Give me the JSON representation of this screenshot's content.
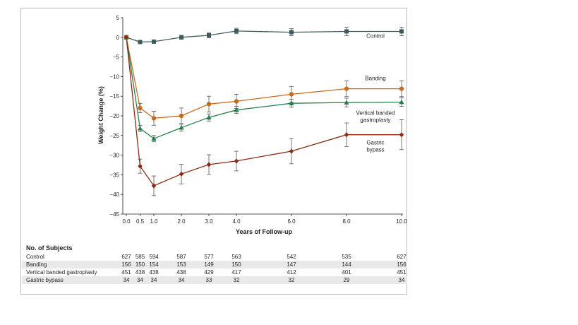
{
  "chart_data": {
    "type": "line",
    "xlabel": "Years of Follow-up",
    "ylabel": "Weight Change (%)",
    "x_ticks": [
      "0.0",
      "0.5",
      "1.0",
      "2.0",
      "3.0",
      "4.0",
      "6.0",
      "8.0",
      "10.0"
    ],
    "y_ticks": [
      5,
      0,
      -5,
      -10,
      -15,
      -20,
      -25,
      -30,
      -35,
      -40,
      -45
    ],
    "ylim": [
      -45,
      5
    ],
    "grid": false,
    "legend": "inline labels at right end of each line",
    "series": [
      {
        "name": "Control",
        "label_lines": [
          "Control"
        ],
        "color": "#3f5a5c",
        "marker": "square",
        "x": [
          0,
          0.5,
          1,
          2,
          3,
          4,
          6,
          8,
          10
        ],
        "y": [
          0,
          -1.2,
          -1.1,
          0,
          0.5,
          1.6,
          1.3,
          1.5,
          1.5
        ],
        "err": [
          0,
          0.3,
          0.3,
          0.5,
          0.6,
          0.7,
          0.9,
          1.1,
          1.1
        ]
      },
      {
        "name": "Banding",
        "label_lines": [
          "Banding"
        ],
        "color": "#c76b1e",
        "marker": "circle",
        "x": [
          0,
          0.5,
          1,
          2,
          3,
          4,
          6,
          8,
          10
        ],
        "y": [
          0,
          -18,
          -20.6,
          -20,
          -17,
          -16.3,
          -14.5,
          -13.1,
          -13.1
        ],
        "err": [
          0,
          1.2,
          1.8,
          2,
          2,
          1.8,
          2,
          2,
          2
        ]
      },
      {
        "name": "Vertical banded gastroplasty",
        "label_lines": [
          "Vertical banded",
          "gastroplasty"
        ],
        "color": "#2a7d4b",
        "marker": "triangle",
        "x": [
          0,
          0.5,
          1,
          2,
          3,
          4,
          6,
          8,
          10
        ],
        "y": [
          0,
          -23.2,
          -25.8,
          -23,
          -20.4,
          -18.5,
          -16.8,
          -16.6,
          -16.5
        ],
        "err": [
          0,
          0.8,
          0.8,
          0.9,
          0.9,
          0.9,
          1,
          1.1,
          1.1
        ]
      },
      {
        "name": "Gastric bypass",
        "label_lines": [
          "Gastric",
          "bypass"
        ],
        "color": "#8a2a12",
        "marker": "diamond",
        "x": [
          0,
          0.5,
          1,
          2,
          3,
          4,
          6,
          8,
          10
        ],
        "y": [
          0,
          -32.8,
          -37.8,
          -34.8,
          -32.4,
          -31.5,
          -29,
          -24.8,
          -24.8
        ],
        "err": [
          0,
          1.8,
          2.5,
          2.5,
          2.5,
          2.5,
          3.2,
          3,
          3.8
        ]
      }
    ]
  },
  "subjects_table": {
    "title": "No. of Subjects",
    "rows": [
      {
        "label": "Control",
        "values": [
          "627",
          "585",
          "594",
          "587",
          "577",
          "563",
          "542",
          "535",
          "627"
        ]
      },
      {
        "label": "Banding",
        "values": [
          "156",
          "150",
          "154",
          "153",
          "149",
          "150",
          "147",
          "144",
          "156"
        ]
      },
      {
        "label": "Vertical banded gastroplasty",
        "values": [
          "451",
          "438",
          "438",
          "438",
          "429",
          "417",
          "412",
          "401",
          "451"
        ]
      },
      {
        "label": "Gastric bypass",
        "values": [
          "34",
          "34",
          "34",
          "34",
          "33",
          "32",
          "32",
          "29",
          "34"
        ]
      }
    ]
  }
}
